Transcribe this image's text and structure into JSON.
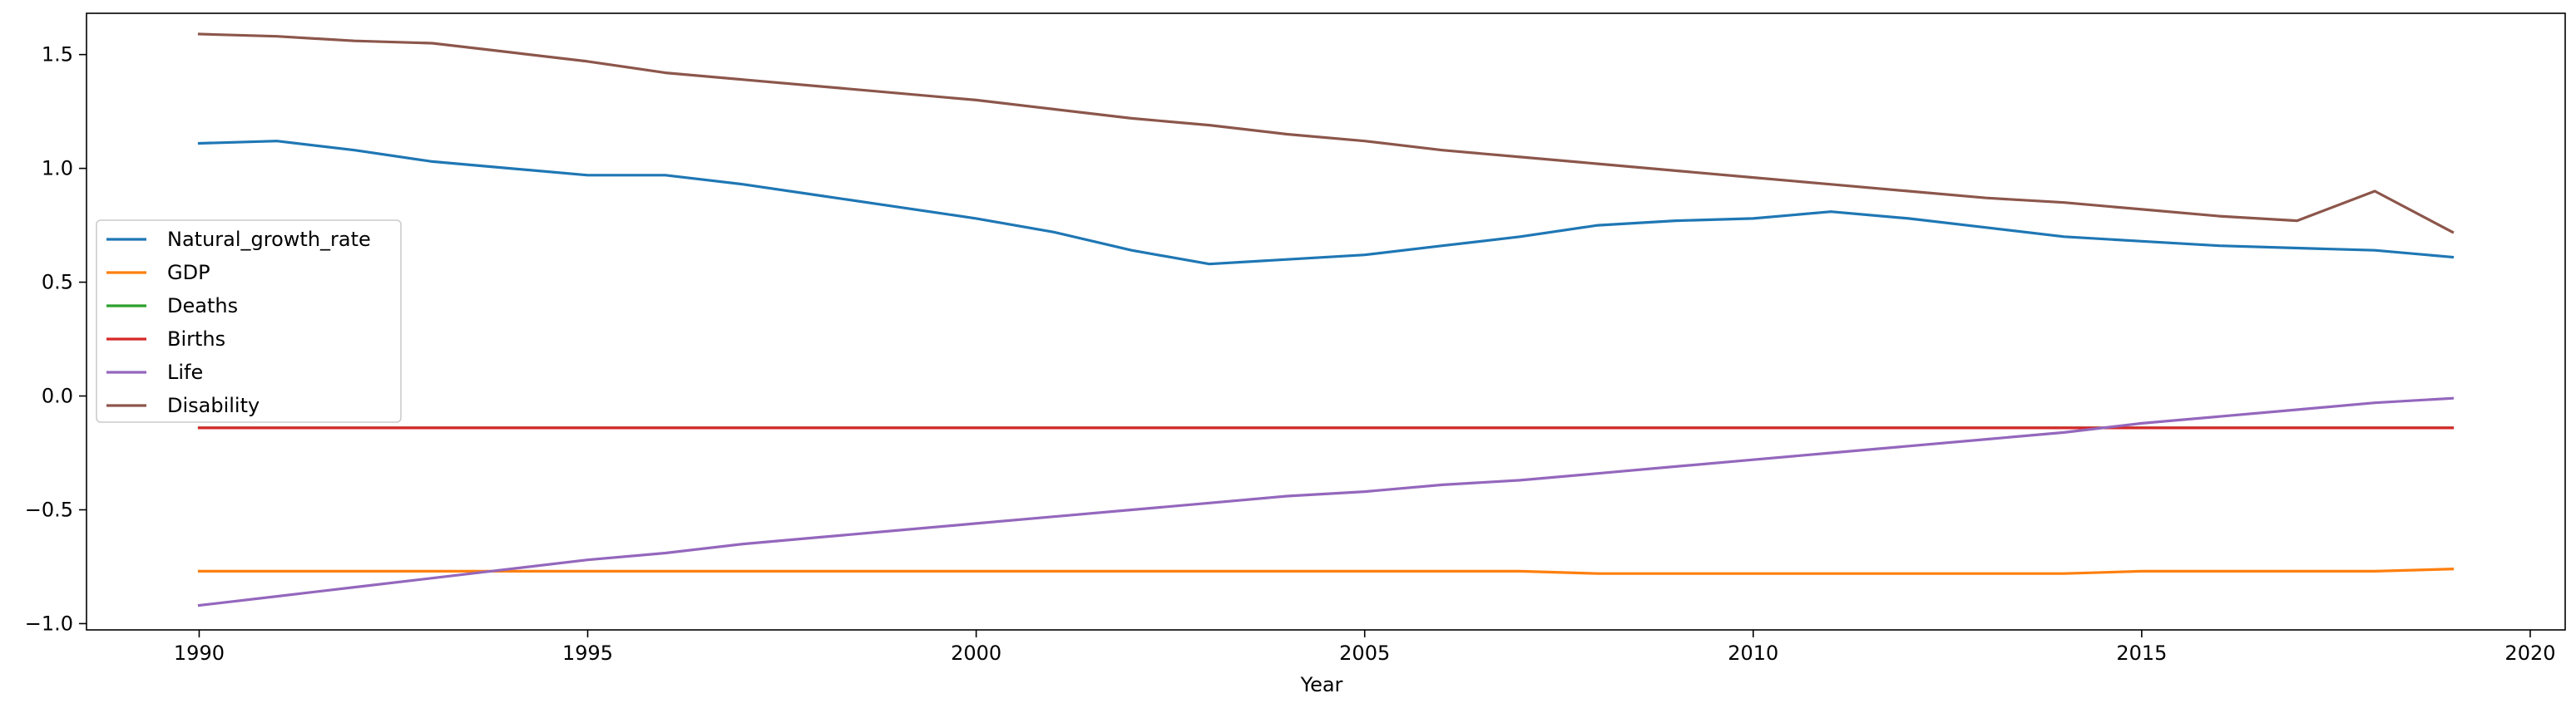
{
  "chart_data": {
    "type": "line",
    "title": "",
    "xlabel": "Year",
    "ylabel": "",
    "xlim": [
      1988.55,
      2020.45
    ],
    "ylim": [
      -1.0276,
      1.6813
    ],
    "xticks": [
      1990,
      1995,
      2000,
      2005,
      2010,
      2015,
      2020
    ],
    "yticks": [
      -1.0,
      -0.5,
      0.0,
      0.5,
      1.0,
      1.5
    ],
    "ytick_labels": [
      "−1.0",
      "−0.5",
      "0.0",
      "0.5",
      "1.0",
      "1.5"
    ],
    "grid": false,
    "legend_position": "center-left",
    "x": [
      1990,
      1991,
      1992,
      1993,
      1994,
      1995,
      1996,
      1997,
      1998,
      1999,
      2000,
      2001,
      2002,
      2003,
      2004,
      2005,
      2006,
      2007,
      2008,
      2009,
      2010,
      2011,
      2012,
      2013,
      2014,
      2015,
      2016,
      2017,
      2018,
      2019
    ],
    "series": [
      {
        "name": "Natural_growth_rate",
        "color": "#1f77b4",
        "values": [
          1.11,
          1.12,
          1.08,
          1.03,
          1.0,
          0.97,
          0.97,
          0.93,
          0.88,
          0.83,
          0.78,
          0.72,
          0.64,
          0.58,
          0.6,
          0.62,
          0.66,
          0.7,
          0.75,
          0.77,
          0.78,
          0.81,
          0.78,
          0.74,
          0.7,
          0.68,
          0.66,
          0.65,
          0.64,
          0.61
        ]
      },
      {
        "name": "GDP",
        "color": "#ff7f0e",
        "values": [
          -0.77,
          -0.77,
          -0.77,
          -0.77,
          -0.77,
          -0.77,
          -0.77,
          -0.77,
          -0.77,
          -0.77,
          -0.77,
          -0.77,
          -0.77,
          -0.77,
          -0.77,
          -0.77,
          -0.77,
          -0.77,
          -0.78,
          -0.78,
          -0.78,
          -0.78,
          -0.78,
          -0.78,
          -0.78,
          -0.77,
          -0.77,
          -0.77,
          -0.77,
          -0.76
        ]
      },
      {
        "name": "Deaths",
        "color": "#2ca02c",
        "values": [
          -0.14,
          -0.14,
          -0.14,
          -0.14,
          -0.14,
          -0.14,
          -0.14,
          -0.14,
          -0.14,
          -0.14,
          -0.14,
          -0.14,
          -0.14,
          -0.14,
          -0.14,
          -0.14,
          -0.14,
          -0.14,
          -0.14,
          -0.14,
          -0.14,
          -0.14,
          -0.14,
          -0.14,
          -0.14,
          -0.14,
          -0.14,
          -0.14,
          -0.14,
          -0.14
        ]
      },
      {
        "name": "Births",
        "color": "#d62728",
        "values": [
          -0.14,
          -0.14,
          -0.14,
          -0.14,
          -0.14,
          -0.14,
          -0.14,
          -0.14,
          -0.14,
          -0.14,
          -0.14,
          -0.14,
          -0.14,
          -0.14,
          -0.14,
          -0.14,
          -0.14,
          -0.14,
          -0.14,
          -0.14,
          -0.14,
          -0.14,
          -0.14,
          -0.14,
          -0.14,
          -0.14,
          -0.14,
          -0.14,
          -0.14,
          -0.14
        ]
      },
      {
        "name": "Life",
        "color": "#9467bd",
        "values": [
          -0.92,
          -0.88,
          -0.84,
          -0.8,
          -0.76,
          -0.72,
          -0.69,
          -0.65,
          -0.62,
          -0.59,
          -0.56,
          -0.53,
          -0.5,
          -0.47,
          -0.44,
          -0.42,
          -0.39,
          -0.37,
          -0.34,
          -0.31,
          -0.28,
          -0.25,
          -0.22,
          -0.19,
          -0.16,
          -0.12,
          -0.09,
          -0.06,
          -0.03,
          -0.01
        ]
      },
      {
        "name": "Disability",
        "color": "#8c564b",
        "values": [
          1.59,
          1.58,
          1.56,
          1.55,
          1.51,
          1.47,
          1.42,
          1.39,
          1.36,
          1.33,
          1.3,
          1.26,
          1.22,
          1.19,
          1.15,
          1.12,
          1.08,
          1.05,
          1.02,
          0.99,
          0.96,
          0.93,
          0.9,
          0.87,
          0.85,
          0.82,
          0.79,
          0.77,
          0.9,
          0.72
        ]
      }
    ]
  }
}
